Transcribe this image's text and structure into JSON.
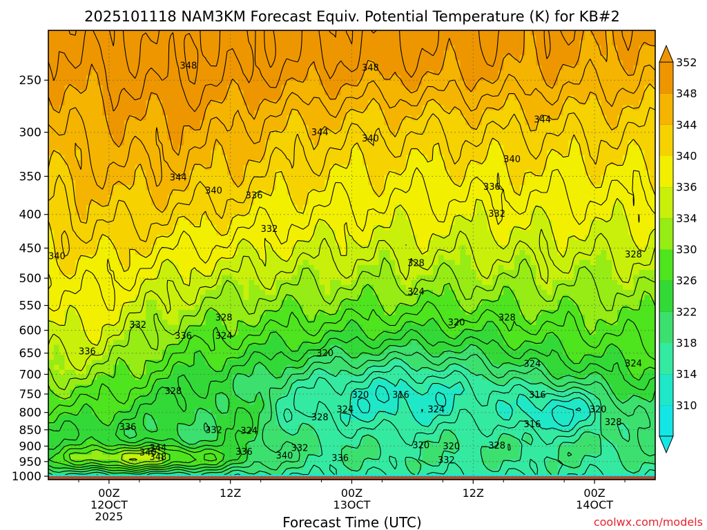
{
  "chart_data": {
    "type": "heatmap",
    "title": "2025101118 NAM3KM Forecast Equiv. Potential Temperature (K) for KB#2",
    "xlabel": "Forecast Time (UTC)",
    "ylabel": "",
    "credit": "coolwx.com/models",
    "x_ticks": [
      {
        "lines": [
          "00Z",
          "12OCT",
          "2025"
        ],
        "value": 0
      },
      {
        "lines": [
          "12Z"
        ],
        "value": 12
      },
      {
        "lines": [
          "00Z",
          "13OCT"
        ],
        "value": 24
      },
      {
        "lines": [
          "12Z"
        ],
        "value": 36
      },
      {
        "lines": [
          "00Z",
          "14OCT"
        ],
        "value": 48
      }
    ],
    "xlim": [
      -6,
      54
    ],
    "y_scale": "log",
    "ylim": [
      1012,
      210
    ],
    "y_ticks": [
      250,
      300,
      350,
      400,
      450,
      500,
      550,
      600,
      650,
      700,
      750,
      800,
      850,
      900,
      950,
      1000
    ],
    "ground_level": 1000,
    "colorbar": {
      "ticks": [
        310,
        314,
        318,
        322,
        326,
        330,
        334,
        336,
        340,
        344,
        348,
        352
      ],
      "colors": [
        "#14e6e6",
        "#1ee8c8",
        "#34eaa0",
        "#3ce06e",
        "#33d936",
        "#4ee41e",
        "#96ec14",
        "#c8f00a",
        "#f2f000",
        "#f5d200",
        "#f5b400",
        "#ee9600"
      ],
      "range": [
        306,
        354
      ]
    },
    "contour_labels": [
      {
        "t": 7,
        "p": 240,
        "v": "348"
      },
      {
        "t": 25,
        "p": 242,
        "v": "348"
      },
      {
        "t": 42,
        "p": 290,
        "v": "344"
      },
      {
        "t": 20,
        "p": 303,
        "v": "344"
      },
      {
        "t": 25,
        "p": 310,
        "v": "340"
      },
      {
        "t": 39,
        "p": 333,
        "v": "340"
      },
      {
        "t": 6,
        "p": 355,
        "v": "344"
      },
      {
        "t": 37,
        "p": 367,
        "v": "336"
      },
      {
        "t": 9.5,
        "p": 372,
        "v": "340"
      },
      {
        "t": 13.5,
        "p": 378,
        "v": "336"
      },
      {
        "t": 15,
        "p": 425,
        "v": "332"
      },
      {
        "t": 37.5,
        "p": 403,
        "v": "332"
      },
      {
        "t": -6,
        "p": 468,
        "v": "340"
      },
      {
        "t": 29.5,
        "p": 479,
        "v": "328"
      },
      {
        "t": 51,
        "p": 465,
        "v": "328"
      },
      {
        "t": 29.5,
        "p": 530,
        "v": "324"
      },
      {
        "t": 10.5,
        "p": 580,
        "v": "328"
      },
      {
        "t": 33.5,
        "p": 590,
        "v": "320"
      },
      {
        "t": 38.5,
        "p": 580,
        "v": "328"
      },
      {
        "t": 2,
        "p": 595,
        "v": "332"
      },
      {
        "t": 6.5,
        "p": 618,
        "v": "336"
      },
      {
        "t": 10.5,
        "p": 618,
        "v": "324"
      },
      {
        "t": -3,
        "p": 653,
        "v": "336"
      },
      {
        "t": 20.5,
        "p": 657,
        "v": "320"
      },
      {
        "t": 41,
        "p": 682,
        "v": "324"
      },
      {
        "t": 51,
        "p": 681,
        "v": "324"
      },
      {
        "t": 5.5,
        "p": 750,
        "v": "328"
      },
      {
        "t": 24,
        "p": 760,
        "v": "320"
      },
      {
        "t": 28,
        "p": 760,
        "v": "316"
      },
      {
        "t": 41.5,
        "p": 760,
        "v": "316"
      },
      {
        "t": 22.5,
        "p": 800,
        "v": "324"
      },
      {
        "t": 31.5,
        "p": 800,
        "v": "324"
      },
      {
        "t": 20,
        "p": 822,
        "v": "328"
      },
      {
        "t": 47.5,
        "p": 800,
        "v": "320"
      },
      {
        "t": 1,
        "p": 850,
        "v": "336"
      },
      {
        "t": 9.5,
        "p": 860,
        "v": "332"
      },
      {
        "t": 13,
        "p": 862,
        "v": "324"
      },
      {
        "t": 41,
        "p": 842,
        "v": "316"
      },
      {
        "t": 49,
        "p": 836,
        "v": "328"
      },
      {
        "t": 30,
        "p": 907,
        "v": "320"
      },
      {
        "t": 33,
        "p": 910,
        "v": "320"
      },
      {
        "t": 37.5,
        "p": 908,
        "v": "328"
      },
      {
        "t": 4,
        "p": 915,
        "v": "344"
      },
      {
        "t": 18,
        "p": 915,
        "v": "332"
      },
      {
        "t": 12.5,
        "p": 928,
        "v": "336"
      },
      {
        "t": 3,
        "p": 930,
        "v": "340"
      },
      {
        "t": 16.5,
        "p": 940,
        "v": "340"
      },
      {
        "t": 4,
        "p": 945,
        "v": "348"
      },
      {
        "t": 22,
        "p": 948,
        "v": "336"
      },
      {
        "t": 32.5,
        "p": 955,
        "v": "332"
      }
    ]
  }
}
